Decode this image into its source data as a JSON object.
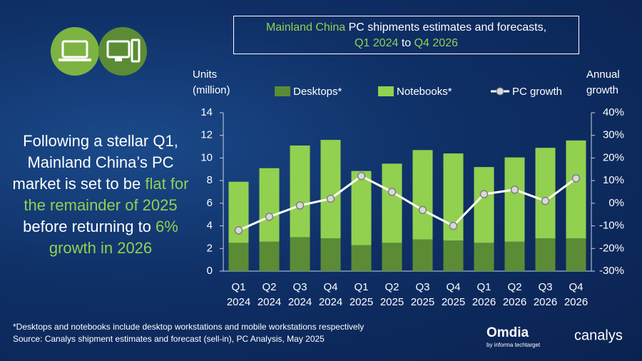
{
  "title": [
    "Mainland China",
    " PC shipments estimates and forecasts,",
    "Q1 2024",
    " to ",
    "Q4 2026"
  ],
  "headline": [
    "Following a stellar Q1, Mainland China’s PC market is set to be ",
    "flat for the remainder of 2025",
    " before returning to ",
    "6% growth in 2026"
  ],
  "footnotes": [
    "*Desktops and notebooks include desktop workstations and mobile workstations respectively",
    "Source: Canalys shipment estimates and forecast (sell-in), PC Analysis, May 2025"
  ],
  "logos": {
    "omdia": "Omdia",
    "omdia_sub": "by informa techtarget",
    "canalys": "canalys"
  },
  "chart_data": {
    "type": "bar",
    "y_label": [
      "Units",
      "(million)"
    ],
    "y2_label": [
      "Annual",
      "growth"
    ],
    "categories": [
      [
        "Q1",
        "2024"
      ],
      [
        "Q2",
        "2024"
      ],
      [
        "Q3",
        "2024"
      ],
      [
        "Q4",
        "2024"
      ],
      [
        "Q1",
        "2025"
      ],
      [
        "Q2",
        "2025"
      ],
      [
        "Q3",
        "2025"
      ],
      [
        "Q4",
        "2025"
      ],
      [
        "Q1",
        "2026"
      ],
      [
        "Q2",
        "2026"
      ],
      [
        "Q3",
        "2026"
      ],
      [
        "Q4",
        "2026"
      ]
    ],
    "series": [
      {
        "name": "Desktops*",
        "color": "#5b8c35",
        "values": [
          2.5,
          2.6,
          3.0,
          2.9,
          2.3,
          2.5,
          2.8,
          2.7,
          2.5,
          2.6,
          2.9,
          2.9
        ]
      },
      {
        "name": "Notebooks*",
        "color": "#92d050",
        "values": [
          5.4,
          6.5,
          8.1,
          8.7,
          6.55,
          7.0,
          7.9,
          7.7,
          6.7,
          7.45,
          8.0,
          8.65
        ]
      },
      {
        "name": "PC growth",
        "type": "line",
        "axis": "y2",
        "color": "#ffffff",
        "values": [
          -12,
          -6,
          -1,
          2,
          12,
          5,
          -3,
          -10,
          4,
          6,
          1,
          11
        ]
      }
    ],
    "ylim": [
      0,
      14
    ],
    "yticks": [
      0,
      2,
      4,
      6,
      8,
      10,
      12,
      14
    ],
    "y2lim": [
      -30,
      40
    ],
    "y2ticks": [
      {
        "value": -30,
        "label": "-30%"
      },
      {
        "value": -20,
        "label": "-20%"
      },
      {
        "value": -10,
        "label": "-10%"
      },
      {
        "value": 0,
        "label": "0%"
      },
      {
        "value": 10,
        "label": "10%"
      },
      {
        "value": 20,
        "label": "20%"
      },
      {
        "value": 30,
        "label": "30%"
      },
      {
        "value": 40,
        "label": "40%"
      }
    ],
    "grid": false,
    "legend": "top"
  }
}
